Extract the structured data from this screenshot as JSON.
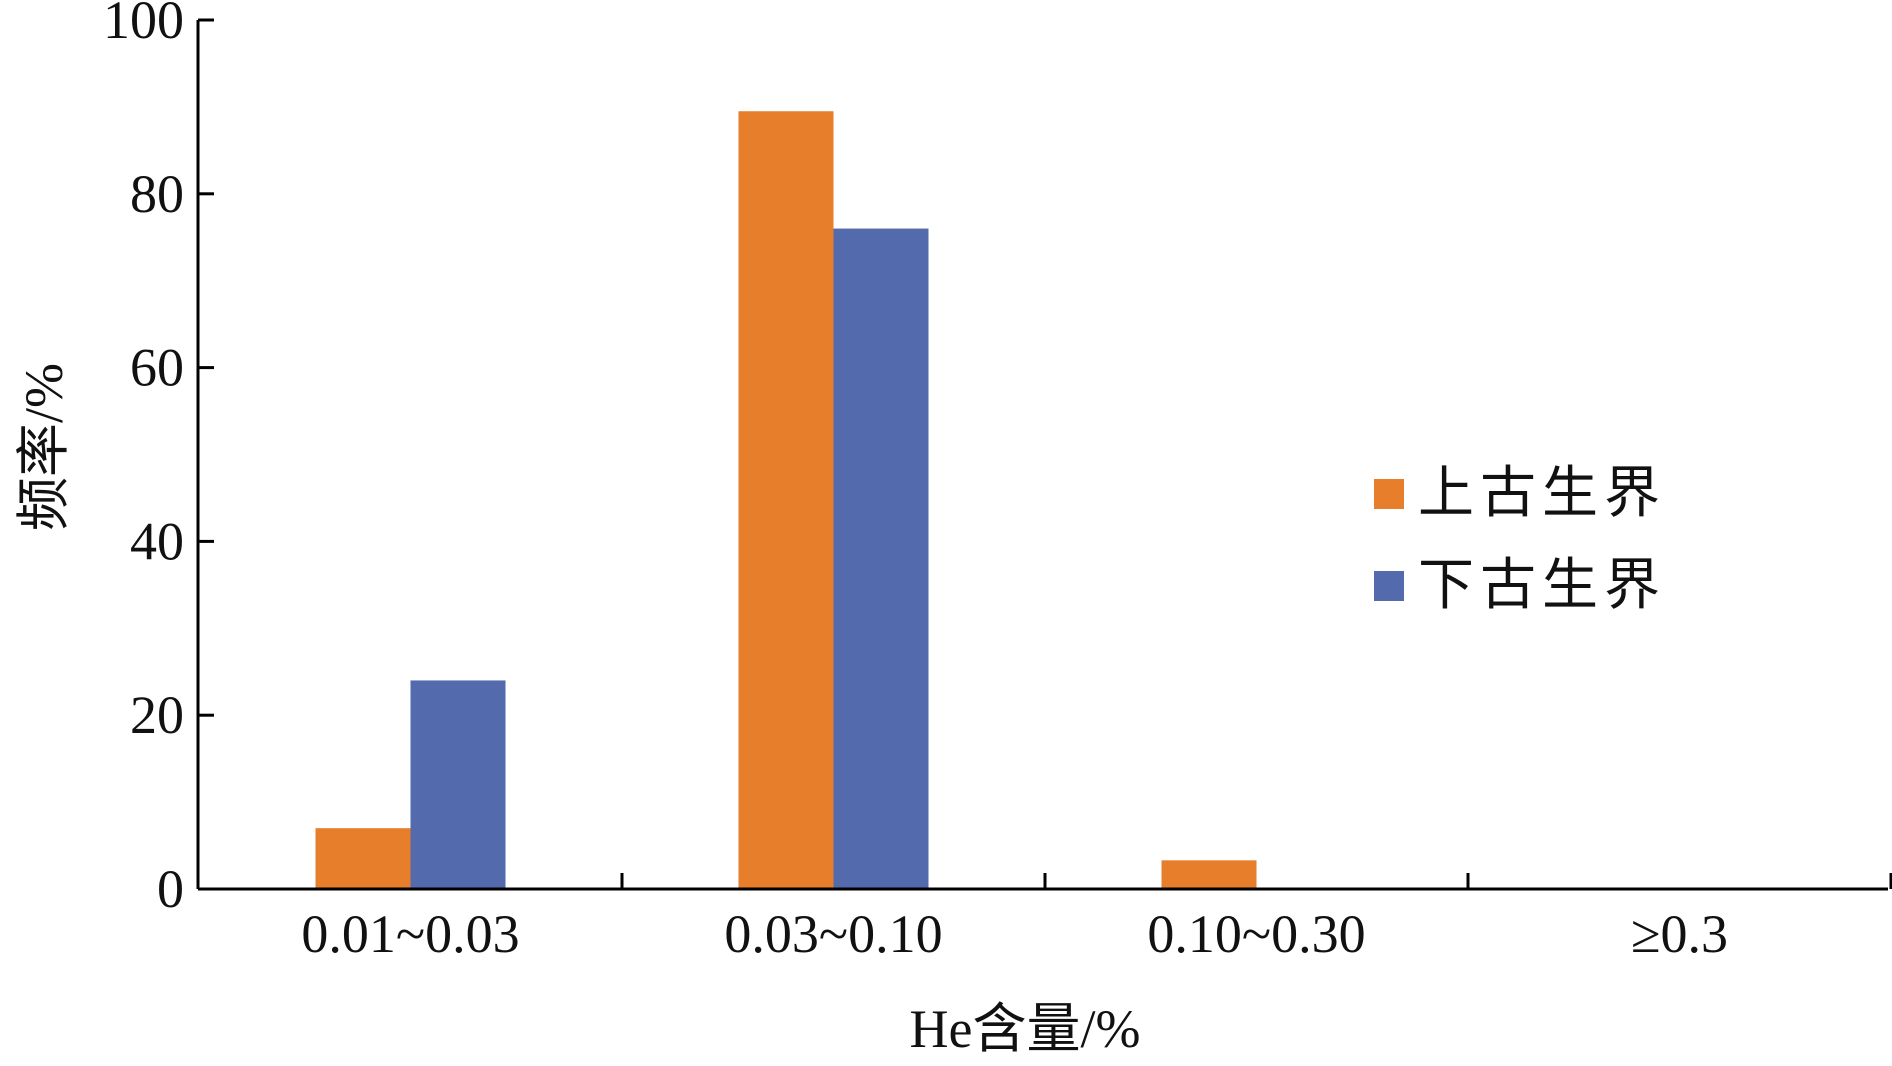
{
  "chart_data": {
    "type": "bar",
    "title": "",
    "xlabel": "He含量/%",
    "ylabel": "频率/%",
    "categories": [
      "0.01~0.03",
      "0.03~0.10",
      "0.10~0.30",
      "≥0.3"
    ],
    "series": [
      {
        "name": "上古生界",
        "color": "#e67e2b",
        "values": [
          7,
          89.5,
          3.3,
          0
        ]
      },
      {
        "name": "下古生界",
        "color": "#536bad",
        "values": [
          24,
          76,
          0,
          0
        ]
      }
    ],
    "ylim": [
      0,
      100
    ],
    "yticks": [
      0,
      20,
      40,
      60,
      80,
      100
    ],
    "grid": false,
    "legend_position": "right"
  }
}
